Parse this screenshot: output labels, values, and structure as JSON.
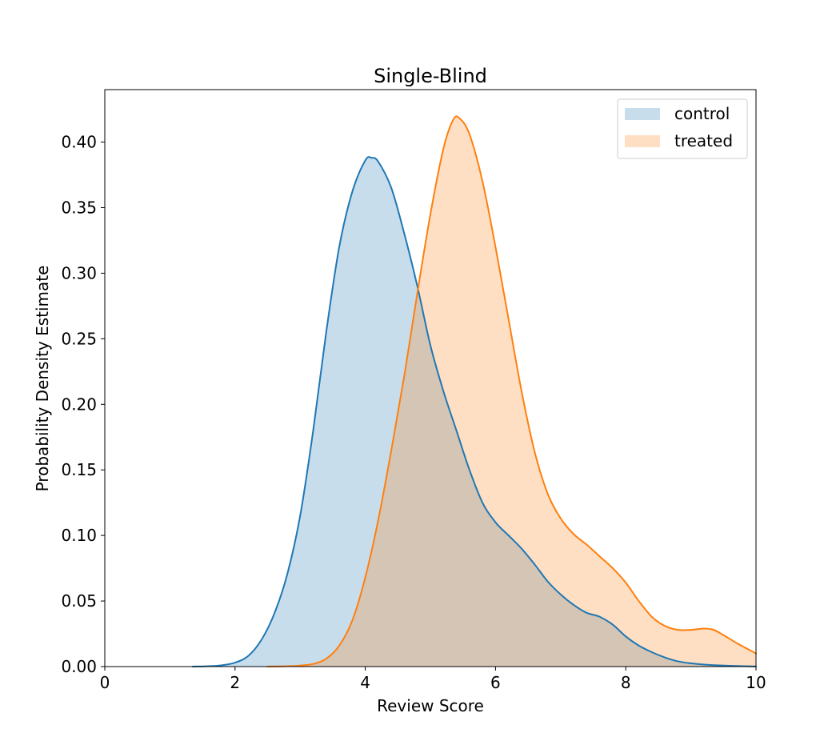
{
  "chart_data": {
    "type": "area",
    "title": "Single-Blind",
    "xlabel": "Review Score",
    "ylabel": "Probability Density Estimate",
    "xlim": [
      0,
      10
    ],
    "ylim": [
      0,
      0.44
    ],
    "x_ticks": [
      0,
      2,
      4,
      6,
      8,
      10
    ],
    "x_tick_labels": [
      "0",
      "2",
      "4",
      "6",
      "8",
      "10"
    ],
    "y_ticks": [
      0.0,
      0.05,
      0.1,
      0.15,
      0.2,
      0.25,
      0.3,
      0.35,
      0.4
    ],
    "y_tick_labels": [
      "0.00",
      "0.05",
      "0.10",
      "0.15",
      "0.20",
      "0.25",
      "0.30",
      "0.35",
      "0.40"
    ],
    "grid": false,
    "legend_position": "top-right",
    "series": [
      {
        "name": "control",
        "color": "#1f77b4",
        "fill_color": "#1f77b4",
        "fill_opacity": 0.25,
        "points": [
          [
            1.35,
            0.0
          ],
          [
            1.6,
            0.0003
          ],
          [
            1.8,
            0.001
          ],
          [
            2.0,
            0.003
          ],
          [
            2.2,
            0.008
          ],
          [
            2.4,
            0.02
          ],
          [
            2.6,
            0.04
          ],
          [
            2.8,
            0.07
          ],
          [
            3.0,
            0.115
          ],
          [
            3.2,
            0.18
          ],
          [
            3.4,
            0.255
          ],
          [
            3.6,
            0.32
          ],
          [
            3.8,
            0.362
          ],
          [
            4.0,
            0.386
          ],
          [
            4.1,
            0.388
          ],
          [
            4.2,
            0.385
          ],
          [
            4.4,
            0.365
          ],
          [
            4.6,
            0.33
          ],
          [
            4.8,
            0.29
          ],
          [
            5.0,
            0.245
          ],
          [
            5.2,
            0.21
          ],
          [
            5.4,
            0.18
          ],
          [
            5.6,
            0.15
          ],
          [
            5.8,
            0.125
          ],
          [
            6.0,
            0.11
          ],
          [
            6.2,
            0.1
          ],
          [
            6.4,
            0.09
          ],
          [
            6.6,
            0.078
          ],
          [
            6.8,
            0.065
          ],
          [
            7.0,
            0.055
          ],
          [
            7.2,
            0.047
          ],
          [
            7.4,
            0.041
          ],
          [
            7.6,
            0.038
          ],
          [
            7.8,
            0.032
          ],
          [
            8.0,
            0.023
          ],
          [
            8.2,
            0.016
          ],
          [
            8.4,
            0.011
          ],
          [
            8.6,
            0.007
          ],
          [
            8.8,
            0.004
          ],
          [
            9.0,
            0.0025
          ],
          [
            9.2,
            0.0015
          ],
          [
            9.4,
            0.001
          ],
          [
            9.6,
            0.0006
          ],
          [
            9.8,
            0.0003
          ],
          [
            10.0,
            0.0001
          ]
        ]
      },
      {
        "name": "treated",
        "color": "#ff7f0e",
        "fill_color": "#ff7f0e",
        "fill_opacity": 0.25,
        "points": [
          [
            2.5,
            0.0
          ],
          [
            2.8,
            0.0003
          ],
          [
            3.0,
            0.0008
          ],
          [
            3.2,
            0.002
          ],
          [
            3.4,
            0.006
          ],
          [
            3.6,
            0.016
          ],
          [
            3.8,
            0.035
          ],
          [
            4.0,
            0.068
          ],
          [
            4.2,
            0.112
          ],
          [
            4.4,
            0.165
          ],
          [
            4.6,
            0.222
          ],
          [
            4.8,
            0.285
          ],
          [
            5.0,
            0.345
          ],
          [
            5.2,
            0.395
          ],
          [
            5.35,
            0.417
          ],
          [
            5.45,
            0.418
          ],
          [
            5.6,
            0.406
          ],
          [
            5.8,
            0.37
          ],
          [
            6.0,
            0.32
          ],
          [
            6.2,
            0.265
          ],
          [
            6.4,
            0.21
          ],
          [
            6.6,
            0.164
          ],
          [
            6.8,
            0.132
          ],
          [
            7.0,
            0.113
          ],
          [
            7.2,
            0.101
          ],
          [
            7.4,
            0.093
          ],
          [
            7.6,
            0.084
          ],
          [
            7.8,
            0.075
          ],
          [
            8.0,
            0.064
          ],
          [
            8.2,
            0.05
          ],
          [
            8.4,
            0.038
          ],
          [
            8.6,
            0.031
          ],
          [
            8.8,
            0.028
          ],
          [
            9.0,
            0.028
          ],
          [
            9.2,
            0.029
          ],
          [
            9.35,
            0.028
          ],
          [
            9.5,
            0.024
          ],
          [
            9.7,
            0.018
          ],
          [
            9.85,
            0.014
          ],
          [
            10.0,
            0.01
          ]
        ]
      }
    ]
  }
}
